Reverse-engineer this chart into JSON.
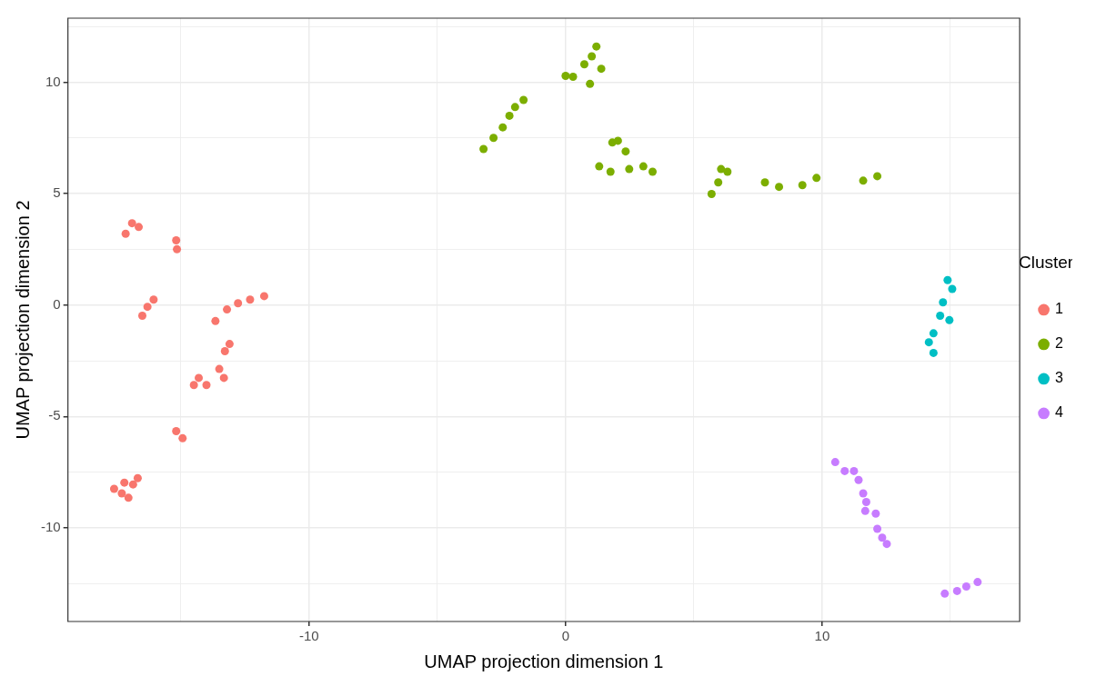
{
  "chart_data": {
    "type": "scatter",
    "xlabel": "UMAP projection dimension 1",
    "ylabel": "UMAP projection dimension 2",
    "legend_title": "Cluster",
    "legend": "right",
    "grid": true,
    "marker": "circle",
    "xlim": [
      -19.4,
      17.7
    ],
    "ylim": [
      -14.2,
      12.87
    ],
    "xticks": [
      {
        "value": -15,
        "label": null
      },
      -10,
      {
        "value": -5,
        "label": null
      },
      0,
      {
        "value": 5,
        "label": null
      },
      10,
      {
        "value": 15,
        "label": null
      }
    ],
    "yticks": [
      {
        "value": -12.5,
        "label": null
      },
      -10,
      {
        "value": -7.5,
        "label": null
      },
      -5,
      {
        "value": -2.5,
        "label": null
      },
      0,
      {
        "value": 2.5,
        "label": null
      },
      5,
      {
        "value": 7.5,
        "label": null
      },
      10,
      {
        "value": 12.5,
        "label": null
      }
    ],
    "series": [
      {
        "name": "1",
        "color": "#f8766d",
        "x": [
          -17.15,
          -16.9,
          -16.64,
          -15.18,
          -15.15,
          -16.5,
          -16.3,
          -16.06,
          -13.65,
          -13.2,
          -12.77,
          -12.3,
          -11.75,
          -13.28,
          -13.1,
          -13.5,
          -13.32,
          -14.49,
          -14.3,
          -14.0,
          -15.18,
          -14.93,
          -17.6,
          -17.2,
          -17.04,
          -16.86,
          -16.68,
          -17.3
        ],
        "values": [
          3.2,
          3.67,
          3.5,
          2.9,
          2.5,
          -0.48,
          -0.08,
          0.24,
          -0.72,
          -0.2,
          0.08,
          0.24,
          0.4,
          -2.07,
          -1.75,
          -2.87,
          -3.27,
          -3.59,
          -3.27,
          -3.59,
          -5.66,
          -5.98,
          -8.25,
          -7.97,
          -8.65,
          -8.05,
          -7.77,
          -8.45
        ]
      },
      {
        "name": "2",
        "color": "#7cae00",
        "x": [
          -3.2,
          -2.81,
          -2.45,
          -2.19,
          -1.97,
          -1.64,
          0.0,
          0.29,
          0.73,
          1.02,
          1.2,
          0.95,
          1.39,
          1.82,
          2.04,
          2.34,
          1.31,
          1.75,
          2.48,
          3.03,
          3.39,
          5.69,
          5.95,
          6.06,
          6.31,
          7.77,
          8.32,
          9.23,
          9.78,
          11.6,
          12.15
        ],
        "values": [
          7.0,
          7.5,
          7.97,
          8.49,
          8.88,
          9.2,
          10.28,
          10.24,
          10.8,
          11.16,
          11.6,
          9.92,
          10.6,
          7.29,
          7.37,
          6.89,
          6.22,
          5.98,
          6.1,
          6.22,
          5.98,
          4.98,
          5.5,
          6.1,
          5.98,
          5.5,
          5.3,
          5.38,
          5.7,
          5.58,
          5.78
        ]
      },
      {
        "name": "3",
        "color": "#00bfc4",
        "x": [
          14.89,
          15.07,
          14.71,
          14.6,
          14.96,
          14.34,
          14.16,
          14.34
        ],
        "values": [
          1.12,
          0.72,
          0.12,
          -0.48,
          -0.68,
          -1.27,
          -1.67,
          -2.15
        ]
      },
      {
        "name": "4",
        "color": "#c77cff",
        "x": [
          10.51,
          10.88,
          11.24,
          11.42,
          11.6,
          11.72,
          11.68,
          12.09,
          12.15,
          12.34,
          12.52,
          14.78,
          15.26,
          15.62,
          16.06
        ],
        "values": [
          -7.05,
          -7.45,
          -7.45,
          -7.85,
          -8.45,
          -8.84,
          -9.24,
          -9.36,
          -10.04,
          -10.44,
          -10.72,
          -12.95,
          -12.83,
          -12.63,
          -12.43
        ]
      }
    ]
  }
}
